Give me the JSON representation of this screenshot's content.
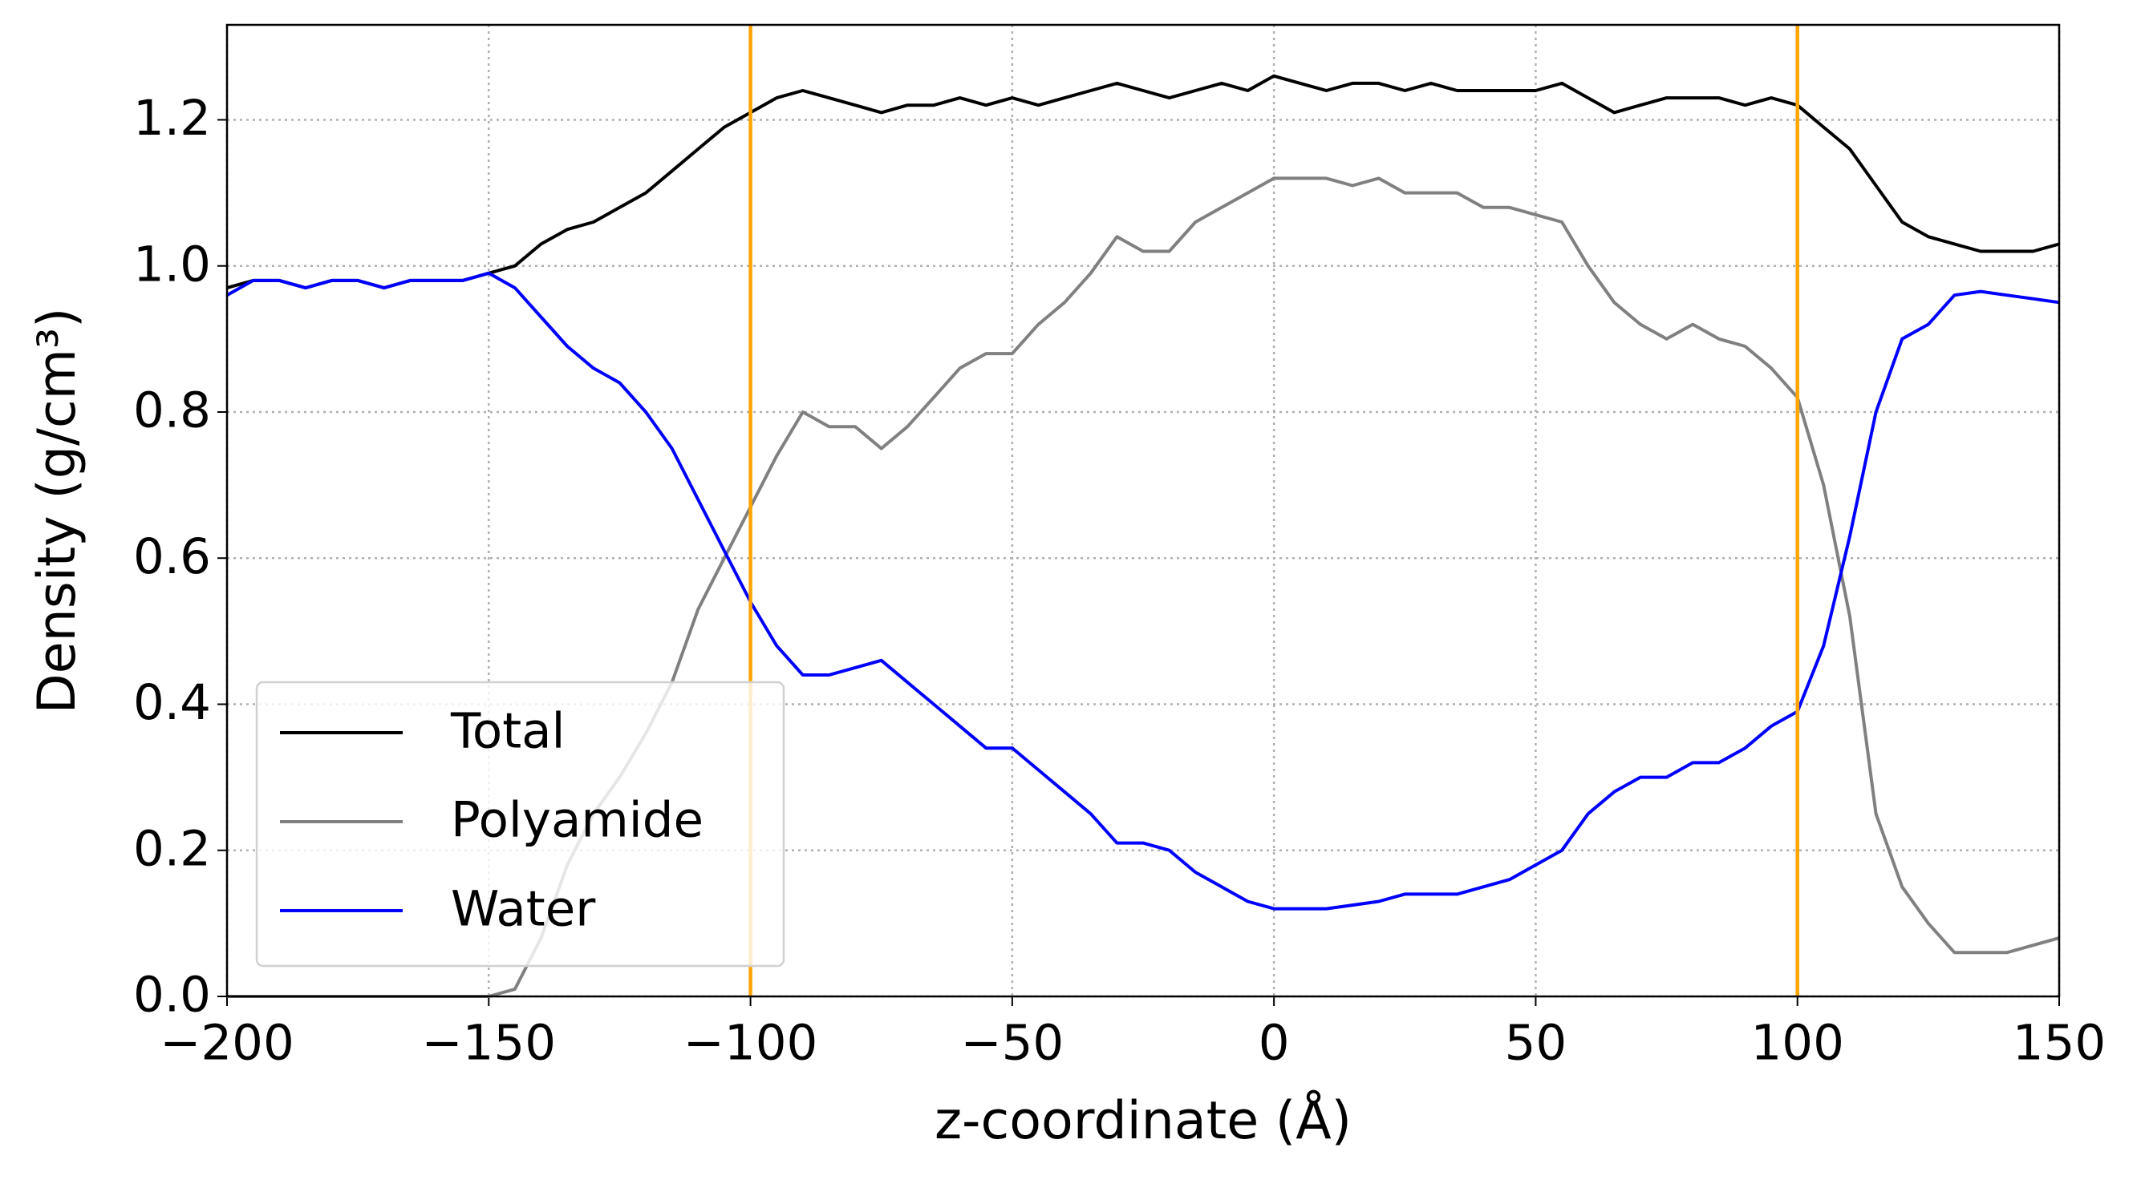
{
  "chart_data": {
    "type": "line",
    "xlabel": "z-coordinate (Å)",
    "ylabel": "Density (g/cm³)",
    "x": [
      -200,
      -195,
      -190,
      -185,
      -180,
      -175,
      -170,
      -165,
      -160,
      -155,
      -150,
      -145,
      -140,
      -135,
      -130,
      -125,
      -120,
      -115,
      -110,
      -105,
      -100,
      -95,
      -90,
      -85,
      -80,
      -75,
      -70,
      -65,
      -60,
      -55,
      -50,
      -45,
      -40,
      -35,
      -30,
      -25,
      -20,
      -15,
      -10,
      -5,
      0,
      5,
      10,
      15,
      20,
      25,
      30,
      35,
      40,
      45,
      50,
      55,
      60,
      65,
      70,
      75,
      80,
      85,
      90,
      95,
      100,
      105,
      110,
      115,
      120,
      125,
      130,
      135,
      140,
      145,
      150
    ],
    "series": [
      {
        "name": "Total",
        "color": "#000000",
        "values": [
          0.97,
          0.98,
          0.98,
          0.97,
          0.98,
          0.98,
          0.97,
          0.98,
          0.98,
          0.98,
          0.99,
          1.0,
          1.03,
          1.05,
          1.06,
          1.08,
          1.1,
          1.13,
          1.16,
          1.19,
          1.21,
          1.23,
          1.24,
          1.23,
          1.22,
          1.21,
          1.22,
          1.22,
          1.23,
          1.22,
          1.23,
          1.22,
          1.23,
          1.24,
          1.25,
          1.24,
          1.23,
          1.24,
          1.25,
          1.24,
          1.26,
          1.25,
          1.24,
          1.25,
          1.25,
          1.24,
          1.25,
          1.24,
          1.24,
          1.24,
          1.24,
          1.25,
          1.23,
          1.21,
          1.22,
          1.23,
          1.23,
          1.23,
          1.22,
          1.23,
          1.22,
          1.19,
          1.16,
          1.11,
          1.06,
          1.04,
          1.03,
          1.02,
          1.02,
          1.02,
          1.03
        ]
      },
      {
        "name": "Polyamide",
        "color": "#808080",
        "values": [
          0,
          0,
          0,
          0,
          0,
          0,
          0,
          0,
          0,
          0,
          0,
          0.01,
          0.08,
          0.18,
          0.25,
          0.3,
          0.36,
          0.43,
          0.53,
          0.6,
          0.67,
          0.74,
          0.8,
          0.78,
          0.78,
          0.75,
          0.78,
          0.82,
          0.86,
          0.88,
          0.88,
          0.92,
          0.95,
          0.99,
          1.04,
          1.02,
          1.02,
          1.06,
          1.08,
          1.1,
          1.12,
          1.12,
          1.12,
          1.11,
          1.12,
          1.1,
          1.1,
          1.1,
          1.08,
          1.08,
          1.07,
          1.06,
          1.0,
          0.95,
          0.92,
          0.9,
          0.92,
          0.9,
          0.89,
          0.86,
          0.82,
          0.7,
          0.52,
          0.25,
          0.15,
          0.1,
          0.06,
          0.06,
          0.06,
          0.07,
          0.08
        ]
      },
      {
        "name": "Water",
        "color": "#0000ff",
        "values": [
          0.96,
          0.98,
          0.98,
          0.97,
          0.98,
          0.98,
          0.97,
          0.98,
          0.98,
          0.98,
          0.99,
          0.97,
          0.93,
          0.89,
          0.86,
          0.84,
          0.8,
          0.75,
          0.68,
          0.61,
          0.54,
          0.48,
          0.44,
          0.44,
          0.45,
          0.46,
          0.43,
          0.4,
          0.37,
          0.34,
          0.34,
          0.31,
          0.28,
          0.25,
          0.21,
          0.21,
          0.2,
          0.17,
          0.15,
          0.13,
          0.12,
          0.12,
          0.12,
          0.125,
          0.13,
          0.14,
          0.14,
          0.14,
          0.15,
          0.16,
          0.18,
          0.2,
          0.25,
          0.28,
          0.3,
          0.3,
          0.32,
          0.32,
          0.34,
          0.37,
          0.39,
          0.48,
          0.63,
          0.8,
          0.9,
          0.92,
          0.96,
          0.965,
          0.96,
          0.955,
          0.95
        ]
      }
    ],
    "vlines": [
      -100,
      100
    ],
    "vline_color": "#ffa500",
    "xlim": [
      -200,
      150
    ],
    "xticks": [
      {
        "value": -200,
        "label": "−200"
      },
      {
        "value": -150,
        "label": "−150"
      },
      {
        "value": -100,
        "label": "−100"
      },
      {
        "value": -50,
        "label": "−50"
      },
      0,
      50,
      100,
      150
    ],
    "ylim": [
      0,
      1.33
    ],
    "yticks": [
      {
        "value": 0,
        "label": "0.0"
      },
      0.2,
      0.4,
      0.6,
      0.8,
      {
        "value": 1,
        "label": "1.0"
      },
      1.2
    ],
    "grid": true,
    "legend": "lower left"
  }
}
